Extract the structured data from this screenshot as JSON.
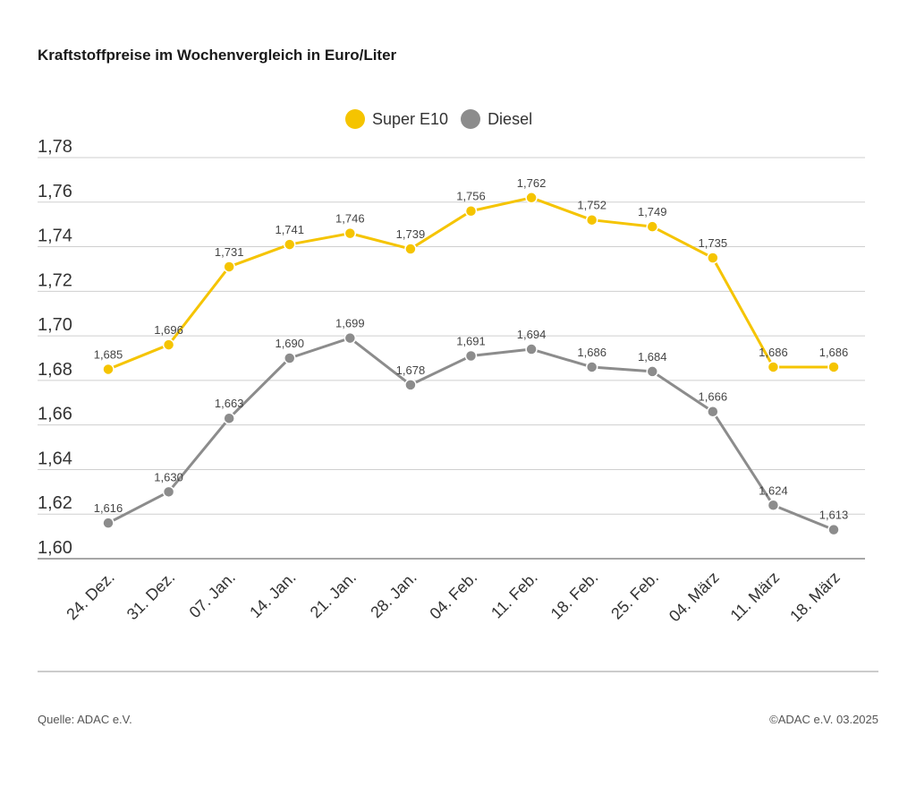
{
  "header": {
    "title": "Kraftstoffpreise im Wochenvergleich in Euro/Liter"
  },
  "footer": {
    "source": "Quelle: ADAC e.V.",
    "copyright": "©ADAC e.V. 03.2025"
  },
  "chart_data": {
    "type": "line",
    "title": "Kraftstoffpreise im Wochenvergleich in Euro/Liter",
    "categories": [
      "24. Dez.",
      "31. Dez.",
      "07. Jan.",
      "14. Jan.",
      "21. Jan.",
      "28. Jan.",
      "04. Feb.",
      "11. Feb.",
      "18. Feb.",
      "25. Feb.",
      "04. März",
      "11. März",
      "18. März"
    ],
    "series": [
      {
        "name": "Super E10",
        "color": "#f5c400",
        "values": [
          1.685,
          1.696,
          1.731,
          1.741,
          1.746,
          1.739,
          1.756,
          1.762,
          1.752,
          1.749,
          1.735,
          1.686,
          1.686
        ],
        "labels": [
          "1,685",
          "1,696",
          "1,731",
          "1,741",
          "1,746",
          "1,739",
          "1,756",
          "1,762",
          "1,752",
          "1,749",
          "1,735",
          "1,686",
          "1,686"
        ]
      },
      {
        "name": "Diesel",
        "color": "#8c8c8c",
        "values": [
          1.616,
          1.63,
          1.663,
          1.69,
          1.699,
          1.678,
          1.691,
          1.694,
          1.686,
          1.684,
          1.666,
          1.624,
          1.613
        ],
        "labels": [
          "1,616",
          "1,630",
          "1,663",
          "1,690",
          "1,699",
          "1,678",
          "1,691",
          "1,694",
          "1,686",
          "1,684",
          "1,666",
          "1,624",
          "1,613"
        ]
      }
    ],
    "ylim": [
      1.6,
      1.78
    ],
    "yticks": [
      1.6,
      1.62,
      1.64,
      1.66,
      1.68,
      1.7,
      1.72,
      1.74,
      1.76,
      1.78
    ],
    "ytick_labels": [
      "1,60",
      "1,62",
      "1,64",
      "1,66",
      "1,68",
      "1,70",
      "1,72",
      "1,74",
      "1,76",
      "1,78"
    ],
    "grid": true,
    "legend": "top-center"
  }
}
